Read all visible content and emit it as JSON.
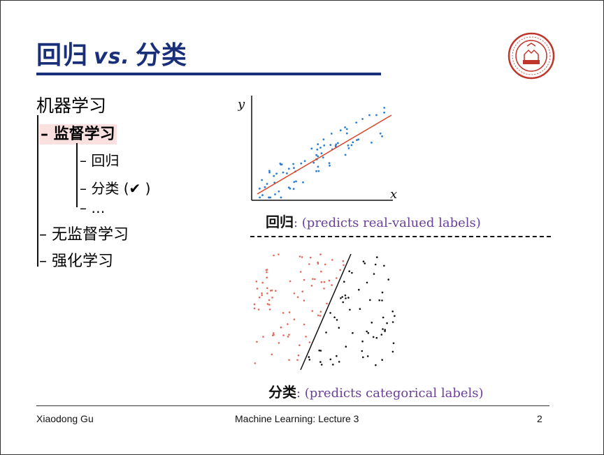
{
  "slide": {
    "title_left": "回归",
    "title_vs": "vs.",
    "title_right": "分类"
  },
  "outline": {
    "root": "机器学习",
    "supervised": "– 监督学习",
    "regression": "– 回归",
    "classification": "– 分类 (✔  )",
    "ellipsis": "– …",
    "unsupervised": "– 无监督学习",
    "reinforcement": "– 强化学习"
  },
  "regression_plot": {
    "y_label": "y",
    "x_label": "x",
    "caption_zh": "回归",
    "caption_en": ": (predicts real-valued labels)"
  },
  "classification_plot": {
    "caption_zh": "分类",
    "caption_en": ": (predicts categorical labels)"
  },
  "colors": {
    "title": "#1a2f7a",
    "regression_points": "#2a7fd4",
    "regression_line": "#d9472b",
    "class_a_points": "#e06a5a",
    "class_b_points": "#111111",
    "caption_text": "#6a3f9a",
    "highlight": "#fbe0e0"
  },
  "footer": {
    "author": "Xiaodong Gu",
    "course": "Machine Learning: Lecture 3",
    "page": "2"
  }
}
